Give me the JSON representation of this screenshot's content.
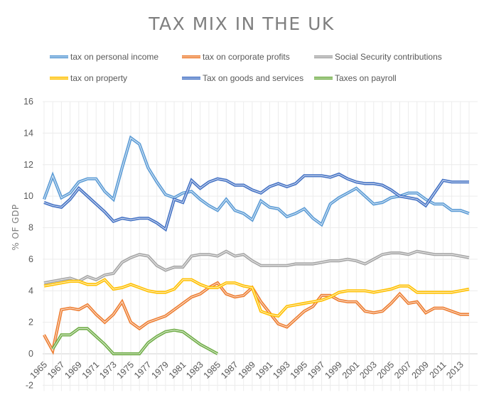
{
  "chart_data": {
    "type": "line",
    "title": "TAX MIX IN THE UK",
    "xlabel": "",
    "ylabel": "% OF GDP",
    "ylim": [
      -2,
      16
    ],
    "yticks": [
      "-2",
      "0",
      "2",
      "4",
      "6",
      "8",
      "10",
      "12",
      "14",
      "16"
    ],
    "ytick_values": [
      -2,
      0,
      2,
      4,
      6,
      8,
      10,
      12,
      14,
      16
    ],
    "x": [
      1965,
      1966,
      1967,
      1968,
      1969,
      1970,
      1971,
      1972,
      1973,
      1974,
      1975,
      1976,
      1977,
      1978,
      1979,
      1980,
      1981,
      1982,
      1983,
      1984,
      1985,
      1986,
      1987,
      1988,
      1989,
      1990,
      1991,
      1992,
      1993,
      1994,
      1995,
      1996,
      1997,
      1998,
      1999,
      2000,
      2001,
      2002,
      2003,
      2004,
      2005,
      2006,
      2007,
      2008,
      2009,
      2010,
      2011,
      2012,
      2013,
      2014
    ],
    "xtick_labels": [
      "1965",
      "1967",
      "1969",
      "1971",
      "1973",
      "1975",
      "1977",
      "1979",
      "1981",
      "1983",
      "1985",
      "1987",
      "1989",
      "1991",
      "1993",
      "1995",
      "1997",
      "1999",
      "2001",
      "2003",
      "2005",
      "2007",
      "2009",
      "2011",
      "2013"
    ],
    "grid": true,
    "legend_position": "top",
    "series": [
      {
        "name": "tax on personal income",
        "color": "#5b9bd5",
        "values": [
          9.8,
          11.3,
          9.9,
          10.2,
          10.9,
          11.1,
          11.1,
          10.3,
          9.8,
          11.8,
          13.7,
          13.3,
          11.8,
          10.9,
          10.1,
          9.9,
          10.2,
          10.3,
          9.8,
          9.4,
          9.1,
          9.8,
          9.1,
          8.9,
          8.5,
          9.7,
          9.3,
          9.2,
          8.7,
          8.9,
          9.2,
          8.6,
          8.2,
          9.5,
          9.9,
          10.2,
          10.5,
          10.0,
          9.5,
          9.6,
          9.9,
          10.0,
          10.2,
          10.2,
          9.8,
          9.5,
          9.5,
          9.1,
          9.1,
          8.9
        ]
      },
      {
        "name": "tax on corporate profits",
        "color": "#ed7d31",
        "values": [
          1.2,
          0.2,
          2.8,
          2.9,
          2.8,
          3.1,
          2.5,
          2.0,
          2.5,
          3.3,
          2.0,
          1.6,
          2.0,
          2.2,
          2.4,
          2.8,
          3.2,
          3.6,
          3.8,
          4.2,
          4.5,
          3.8,
          3.6,
          3.7,
          4.2,
          3.3,
          2.6,
          1.9,
          1.7,
          2.2,
          2.7,
          3.0,
          3.7,
          3.7,
          3.4,
          3.3,
          3.3,
          2.7,
          2.6,
          2.7,
          3.2,
          3.8,
          3.2,
          3.3,
          2.6,
          2.9,
          2.9,
          2.7,
          2.5,
          2.5
        ]
      },
      {
        "name": "Social Security contributions",
        "color": "#a5a5a5",
        "values": [
          4.5,
          4.6,
          4.7,
          4.8,
          4.6,
          4.9,
          4.7,
          5.0,
          5.1,
          5.8,
          6.1,
          6.3,
          6.2,
          5.6,
          5.3,
          5.5,
          5.5,
          6.2,
          6.3,
          6.3,
          6.2,
          6.5,
          6.2,
          6.3,
          5.9,
          5.6,
          5.6,
          5.6,
          5.6,
          5.7,
          5.7,
          5.7,
          5.8,
          5.9,
          5.9,
          6.0,
          5.9,
          5.7,
          6.0,
          6.3,
          6.4,
          6.4,
          6.3,
          6.5,
          6.4,
          6.3,
          6.3,
          6.3,
          6.2,
          6.1
        ]
      },
      {
        "name": "tax on property",
        "color": "#ffc000",
        "values": [
          4.3,
          4.4,
          4.5,
          4.6,
          4.6,
          4.4,
          4.4,
          4.7,
          4.1,
          4.2,
          4.4,
          4.2,
          4.0,
          3.9,
          3.9,
          4.1,
          4.7,
          4.7,
          4.4,
          4.2,
          4.2,
          4.5,
          4.5,
          4.3,
          4.2,
          2.7,
          2.5,
          2.4,
          3.0,
          3.1,
          3.2,
          3.3,
          3.4,
          3.6,
          3.9,
          4.0,
          4.0,
          4.0,
          3.9,
          4.0,
          4.1,
          4.3,
          4.3,
          3.9,
          3.9,
          3.9,
          3.9,
          3.9,
          4.0,
          4.1
        ]
      },
      {
        "name": "Tax on goods and services",
        "color": "#4472c4",
        "values": [
          9.6,
          9.4,
          9.3,
          9.8,
          10.5,
          10.0,
          9.5,
          9.0,
          8.4,
          8.6,
          8.5,
          8.6,
          8.6,
          8.3,
          7.9,
          9.8,
          9.6,
          11.0,
          10.5,
          10.9,
          11.1,
          11.0,
          10.7,
          10.7,
          10.4,
          10.2,
          10.6,
          10.8,
          10.6,
          10.8,
          11.3,
          11.3,
          11.3,
          11.2,
          11.4,
          11.1,
          10.9,
          10.8,
          10.8,
          10.7,
          10.4,
          10.0,
          9.9,
          9.8,
          9.4,
          10.2,
          11.0,
          10.9,
          10.9,
          10.9
        ]
      },
      {
        "name": "Taxes on payroll",
        "color": "#70ad47",
        "values": [
          null,
          0.3,
          1.2,
          1.2,
          1.6,
          1.6,
          1.1,
          0.6,
          0.0,
          0.0,
          0.0,
          0.0,
          0.7,
          1.1,
          1.4,
          1.5,
          1.4,
          1.0,
          0.6,
          0.3,
          0.0,
          null,
          null,
          null,
          null,
          null,
          null,
          null,
          null,
          null,
          null,
          null,
          null,
          null,
          null,
          null,
          null,
          null,
          null,
          null,
          null,
          null,
          null,
          null,
          null,
          null,
          null,
          null,
          null,
          null
        ]
      }
    ]
  }
}
